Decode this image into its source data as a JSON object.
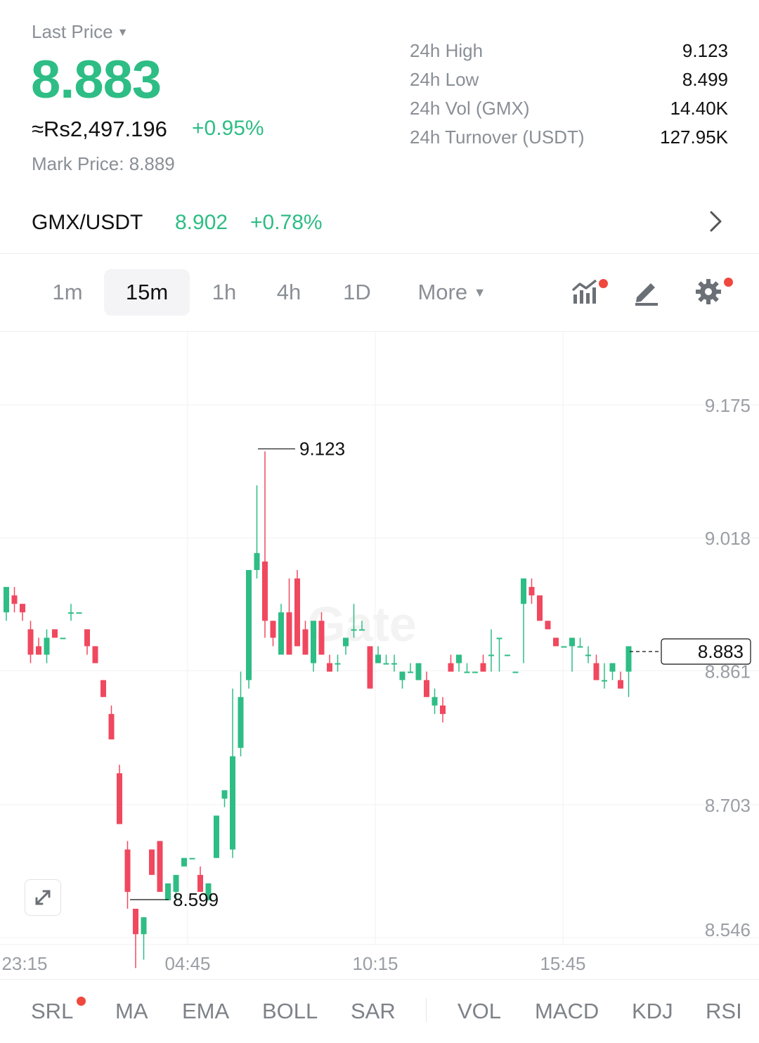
{
  "header": {
    "last_price_label": "Last Price",
    "last_price": "8.883",
    "fiat_price": "≈Rs2,497.196",
    "change_pct": "+0.95%",
    "mark_price_label": "Mark Price:",
    "mark_price": "8.889"
  },
  "stats": [
    {
      "label": "24h High",
      "value": "9.123"
    },
    {
      "label": "24h Low",
      "value": "8.499"
    },
    {
      "label": "24h Vol (GMX)",
      "value": "14.40K"
    },
    {
      "label": "24h Turnover (USDT)",
      "value": "127.95K"
    }
  ],
  "pair": {
    "name": "GMX/USDT",
    "price": "8.902",
    "change": "+0.78%"
  },
  "timeframes": {
    "items": [
      "1m",
      "15m",
      "1h",
      "4h",
      "1D"
    ],
    "more_label": "More",
    "active": "15m"
  },
  "toolbar_icons": [
    "indicator-chart-icon",
    "draw-pen-icon",
    "settings-gear-icon"
  ],
  "colors": {
    "up": "#2ebd85",
    "down": "#f0485f",
    "accent": "#f0483e"
  },
  "chart_data": {
    "type": "candlestick",
    "interval": "15m",
    "y_ticks": [
      9.175,
      9.018,
      8.861,
      8.703,
      8.546
    ],
    "x_ticks": [
      "23:15",
      "04:45",
      "10:15",
      "15:45"
    ],
    "annotations": {
      "high": "9.123",
      "low": "8.599",
      "current": "8.883"
    },
    "grid": true
  },
  "indicators": {
    "items": [
      "SRL",
      "MA",
      "EMA",
      "BOLL",
      "SAR",
      "VOL",
      "MACD",
      "KDJ",
      "RSI"
    ]
  }
}
